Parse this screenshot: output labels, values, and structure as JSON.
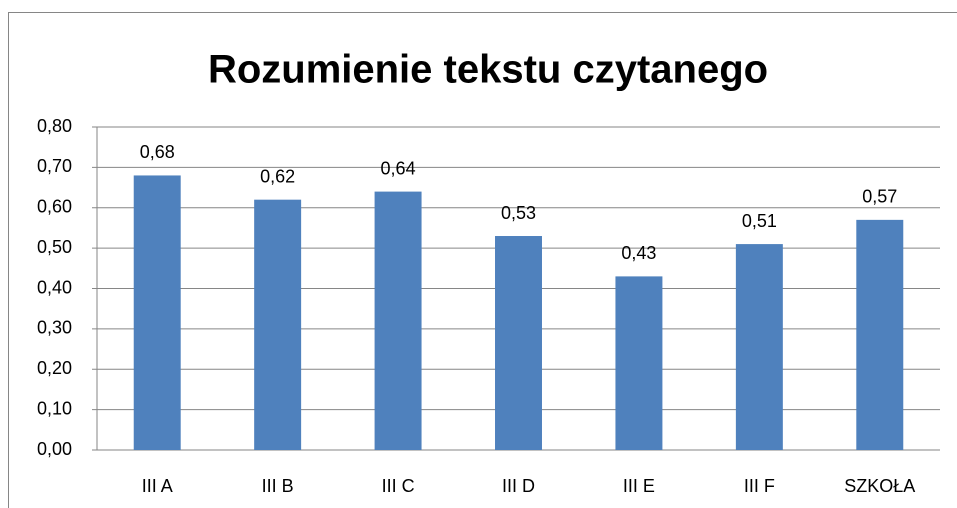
{
  "chart_data": {
    "type": "bar",
    "title": "Rozumienie tekstu czytanego",
    "categories": [
      "III A",
      "III B",
      "III C",
      "III D",
      "III E",
      "III F",
      "SZKOŁA"
    ],
    "values": [
      0.68,
      0.62,
      0.64,
      0.53,
      0.43,
      0.51,
      0.57
    ],
    "value_labels": [
      "0,68",
      "0,62",
      "0,64",
      "0,53",
      "0,43",
      "0,51",
      "0,57"
    ],
    "color": "#4f81bd",
    "ylim": [
      0,
      0.8
    ],
    "yticks": [
      {
        "value": 0,
        "label": "0,00"
      },
      {
        "value": 0.1,
        "label": "0,10"
      },
      {
        "value": 0.2,
        "label": "0,20"
      },
      {
        "value": 0.3,
        "label": "0,30"
      },
      {
        "value": 0.4,
        "label": "0,40"
      },
      {
        "value": 0.5,
        "label": "0,50"
      },
      {
        "value": 0.6,
        "label": "0,60"
      },
      {
        "value": 0.7,
        "label": "0,70"
      },
      {
        "value": 0.8,
        "label": "0,80"
      }
    ],
    "grid": true
  }
}
